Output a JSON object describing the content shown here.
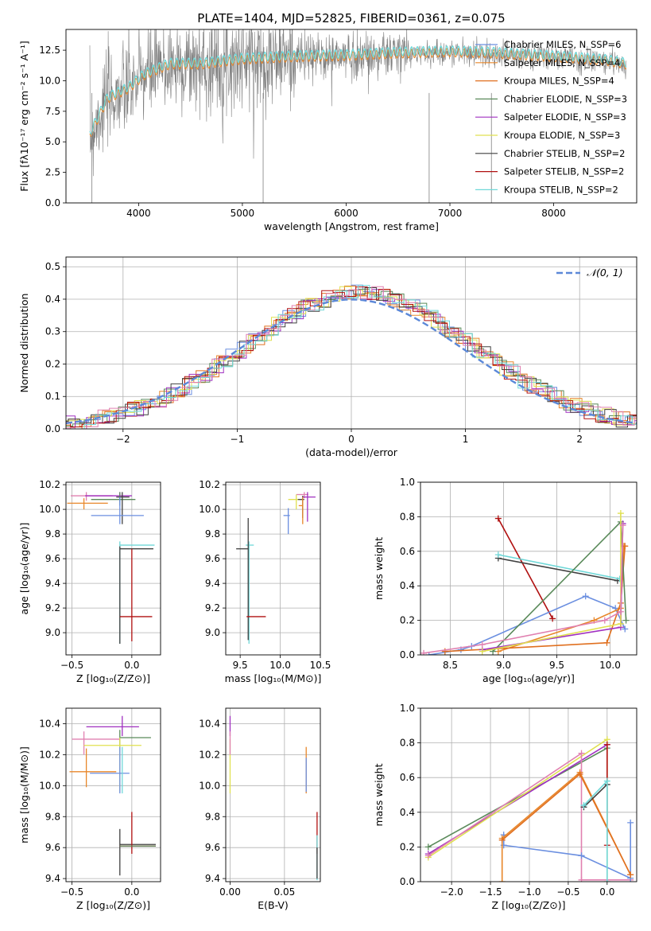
{
  "figure_title": "PLATE=1404, MJD=52825, FIBERID=0361, z=0.075",
  "colors": {
    "chabrier_miles": "#6b8fe0",
    "salpeter_miles": "#e8872a",
    "kroupa_miles": "#e07020",
    "chabrier_elodie": "#5a8a5a",
    "salpeter_elodie": "#a030c0",
    "kroupa_elodie": "#e0e050",
    "chabrier_stelib": "#404040",
    "salpeter_stelib": "#b01010",
    "kroupa_stelib": "#70d8d8",
    "pink": "#e080b0",
    "gaussian": "#5b88d8",
    "data_grey": "#808080",
    "grid": "#b0b0b0"
  },
  "chart_data": [
    {
      "type": "line",
      "panel": "spectrum",
      "title": "PLATE=1404, MJD=52825, FIBERID=0361, z=0.075",
      "xlabel": "wavelength [Angstrom, rest frame]",
      "ylabel": "Flux [fλ10⁻¹⁷ erg cm⁻² s⁻¹ A⁻¹]",
      "xlim": [
        3300,
        8800
      ],
      "ylim": [
        0,
        14.2
      ],
      "xticks": [
        4000,
        5000,
        6000,
        7000,
        8000
      ],
      "yticks": [
        "0.0",
        "2.5",
        "5.0",
        "7.5",
        "10.0",
        "12.5"
      ],
      "grid": false,
      "legend": [
        "Chabrier MILES, N_SSP=6",
        "Salpeter MILES, N_SSP=4",
        "Kroupa MILES, N_SSP=4",
        "Chabrier ELODIE, N_SSP=3",
        "Salpeter ELODIE, N_SSP=3",
        "Kroupa ELODIE, N_SSP=3",
        "Chabrier STELIB, N_SSP=2",
        "Salpeter STELIB, N_SSP=2",
        "Kroupa STELIB, N_SSP=2"
      ],
      "legend_position": "top-right",
      "continuum": {
        "x": [
          3530,
          3700,
          3900,
          4050,
          4300,
          4600,
          5000,
          5500,
          6000,
          6500,
          7000,
          7400,
          8000,
          8500,
          8700
        ],
        "y": [
          5.5,
          8.5,
          9.3,
          10.4,
          11.3,
          11.3,
          11.7,
          11.9,
          12.0,
          12.2,
          12.3,
          12.2,
          11.9,
          11.6,
          11.3
        ]
      }
    },
    {
      "type": "line",
      "panel": "residual_histogram",
      "xlabel": "(data-model)/error",
      "ylabel": "Normed distribution",
      "xlim": [
        -2.5,
        2.5
      ],
      "ylim": [
        0,
        0.53
      ],
      "xticks": [
        "−2",
        "−1",
        "0",
        "1",
        "2"
      ],
      "yticks": [
        "0.0",
        "0.1",
        "0.2",
        "0.3",
        "0.4",
        "0.5"
      ],
      "grid": true,
      "legend": [
        "𝒩(0, 1)"
      ],
      "legend_position": "top-right"
    },
    {
      "type": "scatter",
      "panel": "age_vs_Z",
      "xlabel": "Z [log₁₀(Z/Z⊙)]",
      "ylabel": "age [log₁₀(age/yr)]",
      "xlim": [
        -0.55,
        0.24
      ],
      "ylim": [
        8.82,
        10.22
      ],
      "xticks": [
        "−0.5",
        "0.0"
      ],
      "yticks": [
        "9.0",
        "9.2",
        "9.4",
        "9.6",
        "9.8",
        "10.0",
        "10.2"
      ],
      "grid": true,
      "points": [
        {
          "x": -0.38,
          "y": 10.11,
          "xerr": [
            0.13,
            0.22
          ],
          "yerr": [
            0.04,
            0.03
          ],
          "c": "pink"
        },
        {
          "x": -0.4,
          "y": 10.05,
          "xerr": [
            0.14,
            0.2
          ],
          "yerr": [
            0.05,
            0.04
          ],
          "c": "salpeter_miles"
        },
        {
          "x": -0.1,
          "y": 10.11,
          "xerr": [
            0.29,
            0.1
          ],
          "yerr": [
            0.05,
            0.03
          ],
          "c": "salpeter_elodie"
        },
        {
          "x": -0.1,
          "y": 10.08,
          "xerr": [
            0.24,
            0.13
          ],
          "yerr": [
            0.05,
            0.06
          ],
          "c": "chabrier_elodie"
        },
        {
          "x": -0.08,
          "y": 10.1,
          "xerr": [
            0.05,
            0.06
          ],
          "yerr": [
            0.22,
            0.04
          ],
          "c": "chabrier_stelib"
        },
        {
          "x": -0.1,
          "y": 9.95,
          "xerr": [
            0.24,
            0.2
          ],
          "yerr": [
            0.07,
            0.15
          ],
          "c": "chabrier_miles"
        },
        {
          "x": -0.1,
          "y": 9.71,
          "xerr": [
            0.0,
            0.29
          ],
          "yerr": [
            0.8,
            0.03
          ],
          "c": "kroupa_stelib"
        },
        {
          "x": -0.1,
          "y": 9.68,
          "xerr": [
            0.0,
            0.28
          ],
          "yerr": [
            0.77,
            0.02
          ],
          "c": "chabrier_stelib"
        },
        {
          "x": 0.0,
          "y": 9.13,
          "xerr": [
            0.1,
            0.17
          ],
          "yerr": [
            0.2,
            0.55
          ],
          "c": "salpeter_stelib"
        }
      ]
    },
    {
      "type": "scatter",
      "panel": "age_vs_mass",
      "xlabel": "mass [log₁₀(M/M⊙)]",
      "xlim": [
        9.32,
        10.5
      ],
      "ylim": [
        8.82,
        10.22
      ],
      "xticks": [
        "9.5",
        "10.0",
        "10.5"
      ],
      "yticks": [
        "9.0",
        "9.2",
        "9.4",
        "9.6",
        "9.8",
        "10.0",
        "10.2"
      ],
      "grid": true,
      "points": [
        {
          "x": 10.3,
          "y": 10.12,
          "xerr": [
            0.1,
            0.05
          ],
          "yerr": [
            0.03,
            0.02
          ],
          "c": "pink"
        },
        {
          "x": 10.2,
          "y": 10.08,
          "xerr": [
            0.1,
            0.08
          ],
          "yerr": [
            0.08,
            0.04
          ],
          "c": "kroupa_elodie"
        },
        {
          "x": 10.34,
          "y": 10.1,
          "xerr": [
            0.06,
            0.1
          ],
          "yerr": [
            0.2,
            0.04
          ],
          "c": "salpeter_elodie"
        },
        {
          "x": 10.28,
          "y": 10.08,
          "xerr": [
            0.06,
            0.02
          ],
          "yerr": [
            0.15,
            0.03
          ],
          "c": "chabrier_stelib"
        },
        {
          "x": 10.28,
          "y": 10.03,
          "xerr": [
            0.05,
            0.0
          ],
          "yerr": [
            0.15,
            0.07
          ],
          "c": "salpeter_miles"
        },
        {
          "x": 10.1,
          "y": 9.95,
          "xerr": [
            0.06,
            0.02
          ],
          "yerr": [
            0.15,
            0.06
          ],
          "c": "chabrier_miles"
        },
        {
          "x": 9.61,
          "y": 9.71,
          "xerr": [
            0.04,
            0.06
          ],
          "yerr": [
            0.8,
            0.03
          ],
          "c": "kroupa_stelib"
        },
        {
          "x": 9.6,
          "y": 9.68,
          "xerr": [
            0.15,
            0.0
          ],
          "yerr": [
            0.74,
            0.25
          ],
          "c": "chabrier_stelib"
        },
        {
          "x": 9.62,
          "y": 9.13,
          "xerr": [
            0.04,
            0.2
          ],
          "yerr": [
            0.0,
            0.0
          ],
          "c": "salpeter_stelib"
        }
      ]
    },
    {
      "type": "line",
      "panel": "mass_weight_vs_age",
      "xlabel": "age  [log₁₀(age/yr)]",
      "ylabel": "mass weight",
      "xlim": [
        8.22,
        10.25
      ],
      "ylim": [
        0,
        1
      ],
      "xticks": [
        "8.5",
        "9.0",
        "9.5",
        "10.0"
      ],
      "yticks": [
        "0.0",
        "0.2",
        "0.4",
        "0.6",
        "0.8",
        "1.0"
      ],
      "grid": true,
      "series": [
        {
          "c": "salpeter_stelib",
          "x": [
            8.95,
            9.46
          ],
          "y": [
            0.79,
            0.21
          ]
        },
        {
          "c": "chabrier_stelib",
          "x": [
            8.95,
            10.07
          ],
          "y": [
            0.56,
            0.43
          ]
        },
        {
          "c": "kroupa_stelib",
          "x": [
            8.95,
            10.09
          ],
          "y": [
            0.58,
            0.44
          ]
        },
        {
          "c": "chabrier_miles",
          "x": [
            8.3,
            8.6,
            8.7,
            9.77,
            10.05,
            10.14
          ],
          "y": [
            0.0,
            0.03,
            0.05,
            0.34,
            0.27,
            0.15
          ]
        },
        {
          "c": "salpeter_miles",
          "x": [
            8.95,
            9.85,
            10.1,
            10.13
          ],
          "y": [
            0.02,
            0.2,
            0.27,
            0.63
          ]
        },
        {
          "c": "kroupa_miles",
          "x": [
            8.45,
            9.97,
            10.1,
            10.14
          ],
          "y": [
            0.02,
            0.07,
            0.3,
            0.63
          ]
        },
        {
          "c": "chabrier_elodie",
          "x": [
            8.9,
            10.1,
            10.15
          ],
          "y": [
            0.02,
            0.77,
            0.2
          ]
        },
        {
          "c": "salpeter_elodie",
          "x": [
            8.8,
            10.1,
            10.12
          ],
          "y": [
            0.03,
            0.16,
            0.76
          ]
        },
        {
          "c": "kroupa_elodie",
          "x": [
            8.8,
            10.1,
            10.1
          ],
          "y": [
            0.02,
            0.18,
            0.82
          ]
        },
        {
          "c": "pink",
          "x": [
            8.25,
            8.8,
            9.95,
            10.1,
            10.12
          ],
          "y": [
            0.01,
            0.06,
            0.2,
            0.25,
            0.75
          ]
        }
      ]
    },
    {
      "type": "scatter",
      "panel": "mass_vs_Z",
      "xlabel": "Z [log₁₀(Z/Z⊙)]",
      "ylabel": "mass [log₁₀(M/M⊙)]",
      "xlim": [
        -0.55,
        0.24
      ],
      "ylim": [
        9.38,
        10.5
      ],
      "xticks": [
        "−0.5",
        "0.0"
      ],
      "yticks": [
        "9.4",
        "9.6",
        "9.8",
        "10.0",
        "10.2",
        "10.4"
      ],
      "grid": true,
      "points": [
        {
          "x": -0.08,
          "y": 10.38,
          "xerr": [
            0.3,
            0.14
          ],
          "yerr": [
            0.06,
            0.07
          ],
          "c": "salpeter_elodie"
        },
        {
          "x": -0.4,
          "y": 10.3,
          "xerr": [
            0.1,
            0.3
          ],
          "yerr": [
            0.1,
            0.05
          ],
          "c": "pink"
        },
        {
          "x": -0.1,
          "y": 10.31,
          "xerr": [
            0.0,
            0.26
          ],
          "yerr": [
            0.06,
            0.05
          ],
          "c": "chabrier_elodie"
        },
        {
          "x": -0.1,
          "y": 10.26,
          "xerr": [
            0.3,
            0.18
          ],
          "yerr": [
            0.3,
            0.05
          ],
          "c": "kroupa_elodie"
        },
        {
          "x": -0.38,
          "y": 10.09,
          "xerr": [
            0.14,
            0.25
          ],
          "yerr": [
            0.1,
            0.15
          ],
          "c": "salpeter_miles"
        },
        {
          "x": -0.1,
          "y": 10.08,
          "xerr": [
            0.25,
            0.08
          ],
          "yerr": [
            0.13,
            0.17
          ],
          "c": "chabrier_miles"
        },
        {
          "x": -0.08,
          "y": 10.05,
          "xerr": [
            0.0,
            0.0
          ],
          "yerr": [
            0.1,
            0.2
          ],
          "c": "kroupa_stelib"
        },
        {
          "x": -0.1,
          "y": 9.62,
          "xerr": [
            0.0,
            0.3
          ],
          "yerr": [
            0.2,
            0.1
          ],
          "c": "chabrier_stelib"
        },
        {
          "x": 0.0,
          "y": 9.61,
          "xerr": [
            0.1,
            0.2
          ],
          "yerr": [
            0.05,
            0.22
          ],
          "c": "salpeter_stelib"
        },
        {
          "x": -0.1,
          "y": 9.61,
          "xerr": [
            0.0,
            0.3
          ],
          "yerr": [
            0.0,
            0.0
          ],
          "c": "chabrier_elodie"
        }
      ]
    },
    {
      "type": "scatter",
      "panel": "mass_vs_EBV",
      "xlabel": "E(B-V)",
      "xlim": [
        -0.004,
        0.083
      ],
      "ylim": [
        9.38,
        10.5
      ],
      "xticks": [
        "0.00",
        "0.05"
      ],
      "yticks": [
        "9.4",
        "9.6",
        "9.8",
        "10.0",
        "10.2",
        "10.4"
      ],
      "grid": true,
      "points": [
        {
          "x": 0.0,
          "y": 10.38,
          "xerr": [
            0,
            0
          ],
          "yerr": [
            0.06,
            0.07
          ],
          "c": "salpeter_elodie"
        },
        {
          "x": 0.0,
          "y": 10.25,
          "xerr": [
            0,
            0
          ],
          "yerr": [
            0.3,
            0.05
          ],
          "c": "kroupa_elodie"
        },
        {
          "x": 0.0,
          "y": 10.3,
          "xerr": [
            0,
            0
          ],
          "yerr": [
            0.1,
            0.05
          ],
          "c": "pink"
        },
        {
          "x": 0.07,
          "y": 10.1,
          "xerr": [
            0,
            0
          ],
          "yerr": [
            0.15,
            0.15
          ],
          "c": "salpeter_miles"
        },
        {
          "x": 0.07,
          "y": 10.08,
          "xerr": [
            0,
            0
          ],
          "yerr": [
            0.12,
            0.1
          ],
          "c": "chabrier_miles"
        },
        {
          "x": 0.08,
          "y": 9.61,
          "xerr": [
            0,
            0
          ],
          "yerr": [
            0.05,
            0.22
          ],
          "c": "salpeter_stelib"
        },
        {
          "x": 0.08,
          "y": 9.56,
          "xerr": [
            0,
            0
          ],
          "yerr": [
            0.17,
            0.12
          ],
          "c": "kroupa_stelib"
        },
        {
          "x": 0.08,
          "y": 9.5,
          "xerr": [
            0,
            0
          ],
          "yerr": [
            0.1,
            0.1
          ],
          "c": "chabrier_stelib"
        }
      ]
    },
    {
      "type": "line",
      "panel": "mass_weight_vs_Z",
      "xlabel": "Z [log₁₀(Z/Z⊙)]",
      "ylabel": "mass weight",
      "xlim": [
        -2.4,
        0.38
      ],
      "ylim": [
        0,
        1
      ],
      "xticks": [
        "−2.0",
        "−1.5",
        "−1.0",
        "−0.5",
        "0.0"
      ],
      "yticks": [
        "0.0",
        "0.2",
        "0.4",
        "0.6",
        "0.8",
        "1.0"
      ],
      "grid": true,
      "series": [
        {
          "c": "chabrier_elodie",
          "x": [
            -2.3,
            0.0
          ],
          "y": [
            0.2,
            0.77
          ]
        },
        {
          "c": "salpeter_elodie",
          "x": [
            -2.3,
            0.0
          ],
          "y": [
            0.16,
            0.79
          ]
        },
        {
          "c": "kroupa_elodie",
          "x": [
            -2.3,
            0.0,
            0.0
          ],
          "y": [
            0.14,
            0.82,
            0.0
          ]
        },
        {
          "c": "pink",
          "x": [
            -2.3,
            -0.33,
            -0.33,
            0.3
          ],
          "y": [
            0.15,
            0.74,
            0.01,
            0.01
          ]
        },
        {
          "c": "chabrier_miles",
          "x": [
            -1.33,
            -1.33,
            -0.33,
            0.3,
            0.3
          ],
          "y": [
            0.27,
            0.21,
            0.15,
            0.02,
            0.34
          ]
        },
        {
          "c": "salpeter_miles",
          "x": [
            -1.35,
            -1.35,
            -0.35,
            0.3
          ],
          "y": [
            0.0,
            0.25,
            0.63,
            0.04
          ]
        },
        {
          "c": "kroupa_miles",
          "x": [
            -1.35,
            -0.35,
            0.3
          ],
          "y": [
            0.24,
            0.62,
            0.04
          ]
        },
        {
          "c": "salpeter_stelib",
          "x": [
            0.0,
            0.0
          ],
          "y": [
            0.21,
            0.79
          ]
        },
        {
          "c": "chabrier_stelib",
          "x": [
            -0.3,
            0.0
          ],
          "y": [
            0.43,
            0.56
          ]
        },
        {
          "c": "kroupa_stelib",
          "x": [
            -0.3,
            0.0,
            0.0
          ],
          "y": [
            0.44,
            0.58,
            0.0
          ]
        }
      ]
    }
  ]
}
